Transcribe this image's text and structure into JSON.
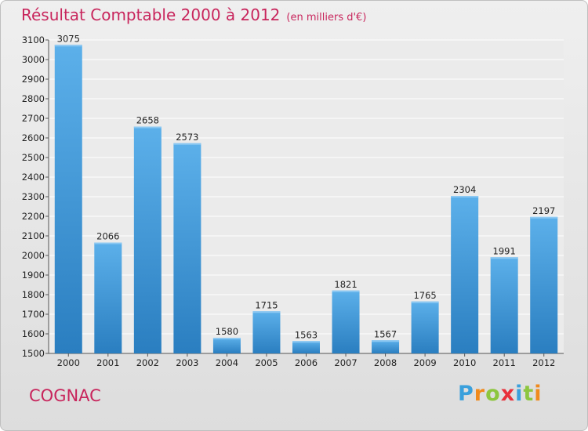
{
  "header": {
    "title": "Résultat Comptable 2000 à 2012",
    "unit": "(en milliers d'€)"
  },
  "footer": {
    "city": "COGNAC"
  },
  "logo": {
    "letters": [
      "P",
      "r",
      "o",
      "x",
      "i",
      "t",
      "i"
    ],
    "colors": [
      "#3aa0dc",
      "#f08a1c",
      "#8dc63f",
      "#e8303a",
      "#3aa0dc",
      "#8dc63f",
      "#f08a1c"
    ]
  },
  "colors": {
    "bar_light": "#5cb0ea",
    "bar_dark": "#2a7ec0",
    "title": "#c8255c"
  },
  "chart_data": {
    "type": "bar",
    "title": "Résultat Comptable 2000 à 2012",
    "subtitle": "(en milliers d'€)",
    "xlabel": "",
    "ylabel": "",
    "categories": [
      "2000",
      "2001",
      "2002",
      "2003",
      "2004",
      "2005",
      "2006",
      "2007",
      "2008",
      "2009",
      "2010",
      "2011",
      "2012"
    ],
    "values": [
      3075,
      2066,
      2658,
      2573,
      1580,
      1715,
      1563,
      1821,
      1567,
      1765,
      2304,
      1991,
      2197
    ],
    "ylim": [
      1500,
      3100
    ],
    "yticks": [
      1500,
      1600,
      1700,
      1800,
      1900,
      2000,
      2100,
      2200,
      2300,
      2400,
      2500,
      2600,
      2700,
      2800,
      2900,
      3000,
      3100
    ],
    "grid": true
  }
}
